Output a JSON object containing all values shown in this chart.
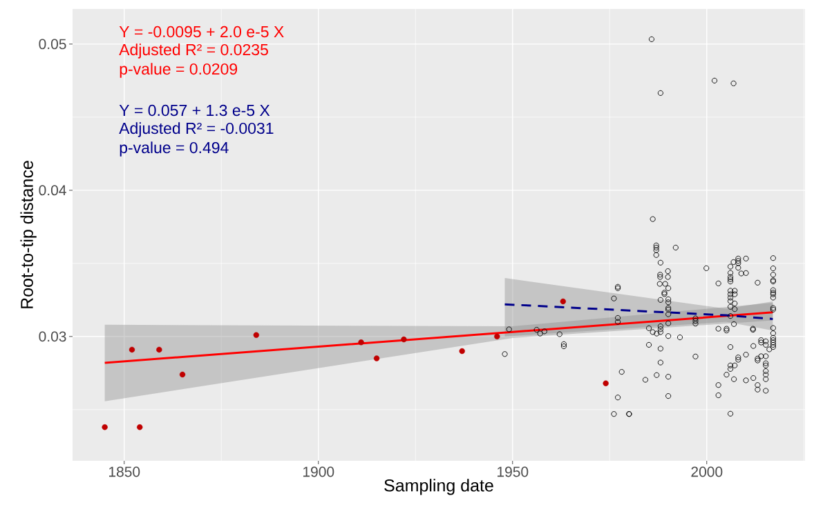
{
  "chart_data": {
    "type": "scatter",
    "xlabel": "Sampling date",
    "ylabel": "Root-to-tip distance",
    "xlim": [
      1836.7,
      2025.3
    ],
    "ylim": [
      0.0215,
      0.0524
    ],
    "xticks": [
      1850,
      1900,
      1950,
      2000
    ],
    "yticks": [
      0.03,
      0.04,
      0.05
    ],
    "grid": true,
    "annotations": [
      "Y = -0.0095 + 2.0 e-5 X",
      "Adjusted R² = 0.0235",
      "p-value = 0.0209",
      "Y = 0.057 + 1.3 e-5 X",
      "Adjusted R² = -0.0031",
      "p-value = 0.494"
    ],
    "series": [
      {
        "color": "#000000",
        "marker": "circle",
        "x": [
          1986.1,
          1987,
          1987,
          1987,
          1987,
          1992.0,
          1988.1,
          1999.9,
          1990,
          1990,
          1988,
          1988,
          1987.9,
          1989.3,
          1977.1,
          1977.1,
          1990.1,
          1989.1,
          1989.1,
          1976.1,
          1988.1,
          1990.1,
          1990.1,
          1990.1,
          1990.1,
          1990.1,
          1977.1,
          1977.1,
          1997.1,
          1997.1,
          1997.1,
          1990.1,
          1985.1,
          1986.1,
          1987.1,
          1988.1,
          1988.1,
          1988.1,
          1990.1,
          1993.1,
          1985.1,
          1988.1,
          1997.1,
          1988.1,
          1978.1,
          1984.2,
          1987.1,
          1990.1,
          1977.1,
          1990.1,
          1976.1,
          1980.0,
          1980.0,
          1949.1,
          1948.0,
          1956.2,
          1957.1,
          1958.2,
          1962.1,
          1963.2,
          1963.2,
          2017.1,
          2017.1,
          2017.1,
          2017.1,
          2017.1,
          2017.1,
          2017.1,
          2017.1,
          2017.1,
          2017.1,
          2017.1,
          2017.1,
          2017.1,
          2017.1,
          2017.1,
          2017.1,
          2017.1,
          2017.1,
          2003.0,
          2006.1,
          2006.1,
          2006.1,
          2006.1,
          2006.1,
          2006.9,
          2008.1,
          2008.1,
          2008.1,
          2008.1,
          2008.9,
          2010.1,
          2010.1,
          2013.1,
          2006.1,
          2006.1,
          2006.1,
          2006.1,
          2006.1,
          2007.2,
          2007.2,
          2007.2,
          2007.2,
          2006.1,
          2003.0,
          2005.1,
          2005.1,
          2007.0,
          2011.9,
          2011.9,
          2014.0,
          2014.0,
          2015.2,
          2015.2,
          2016.1,
          2006.1,
          2012.0,
          2008.1,
          2008.1,
          2010.1,
          2013.1,
          2013.1,
          2014.0,
          2015.2,
          2015.2,
          2015.2,
          2015.2,
          2015.2,
          2015.2,
          2006.1,
          2006.1,
          2007.2,
          2005.1,
          2007.0,
          2010.1,
          2012.0,
          2013.1,
          2013.1,
          2015.2,
          2003.0,
          2003.0,
          2006.1,
          1985.8,
          1988.1,
          2002.0,
          2006.9
        ],
        "values": [
          0.03803,
          0.03623,
          0.03608,
          0.0359,
          0.03557,
          0.03608,
          0.03505,
          0.03467,
          0.03447,
          0.03407,
          0.03423,
          0.03407,
          0.0336,
          0.0336,
          0.0334,
          0.0333,
          0.0333,
          0.033,
          0.0329,
          0.0326,
          0.0325,
          0.03255,
          0.03234,
          0.03195,
          0.03184,
          0.03152,
          0.03127,
          0.031,
          0.03124,
          0.03107,
          0.03088,
          0.0309,
          0.03057,
          0.0303,
          0.0302,
          0.0307,
          0.0305,
          0.0303,
          0.03003,
          0.02994,
          0.02943,
          0.02917,
          0.02863,
          0.02822,
          0.02758,
          0.02704,
          0.02736,
          0.02725,
          0.02583,
          0.02593,
          0.0247,
          0.0247,
          0.0247,
          0.03049,
          0.0288,
          0.03046,
          0.0302,
          0.03035,
          0.03016,
          0.02948,
          0.02933,
          0.03536,
          0.03466,
          0.03423,
          0.03384,
          0.03376,
          0.03317,
          0.033,
          0.03289,
          0.03266,
          0.03195,
          0.03184,
          0.03058,
          0.03022,
          0.02991,
          0.02975,
          0.02959,
          0.02943,
          0.02928,
          0.03363,
          0.03478,
          0.03435,
          0.03407,
          0.03392,
          0.03376,
          0.03509,
          0.03533,
          0.03517,
          0.03501,
          0.0347,
          0.03431,
          0.03533,
          0.03434,
          0.03368,
          0.03313,
          0.03289,
          0.03266,
          0.03242,
          0.03203,
          0.03313,
          0.03289,
          0.03226,
          0.03187,
          0.0314,
          0.03053,
          0.03053,
          0.03041,
          0.03085,
          0.03053,
          0.03046,
          0.02975,
          0.02959,
          0.02967,
          0.02943,
          0.02912,
          0.02928,
          0.02935,
          0.02857,
          0.02841,
          0.02876,
          0.02849,
          0.02836,
          0.02865,
          0.02865,
          0.02817,
          0.02802,
          0.02763,
          0.02739,
          0.02708,
          0.02802,
          0.02778,
          0.02802,
          0.02739,
          0.02708,
          0.027,
          0.02716,
          0.02668,
          0.02637,
          0.02629,
          0.02668,
          0.02598,
          0.02472,
          0.05033,
          0.04665,
          0.0475,
          0.04731
        ]
      },
      {
        "color": "#c00000",
        "marker": "circle",
        "x": [
          1845,
          1852,
          1854,
          1859,
          1865,
          1884,
          1911,
          1915,
          1922,
          1937,
          1946,
          1963,
          1974
        ],
        "values": [
          0.0238,
          0.0291,
          0.0238,
          0.0291,
          0.0274,
          0.0301,
          0.0296,
          0.0285,
          0.0298,
          0.029,
          0.03,
          0.0324,
          0.0268
        ]
      },
      {
        "type": "line",
        "color": "#ff0000",
        "marker": "none",
        "line_style": "solid",
        "x": [
          1845,
          1950,
          2017
        ],
        "values": [
          0.0282,
          0.03031,
          0.03165
        ],
        "lower": [
          0.02557,
          0.0299,
          0.0311
        ],
        "upper": [
          0.0308,
          0.0307,
          0.0323
        ]
      },
      {
        "type": "line",
        "color": "#00008b",
        "marker": "none",
        "line_style": "dashed",
        "x": [
          1948,
          2005,
          2017
        ],
        "values": [
          0.0322,
          0.03145,
          0.0312
        ],
        "lower": [
          0.03,
          0.031,
          0.0304
        ],
        "upper": [
          0.034,
          0.0319,
          0.0324
        ]
      }
    ]
  }
}
